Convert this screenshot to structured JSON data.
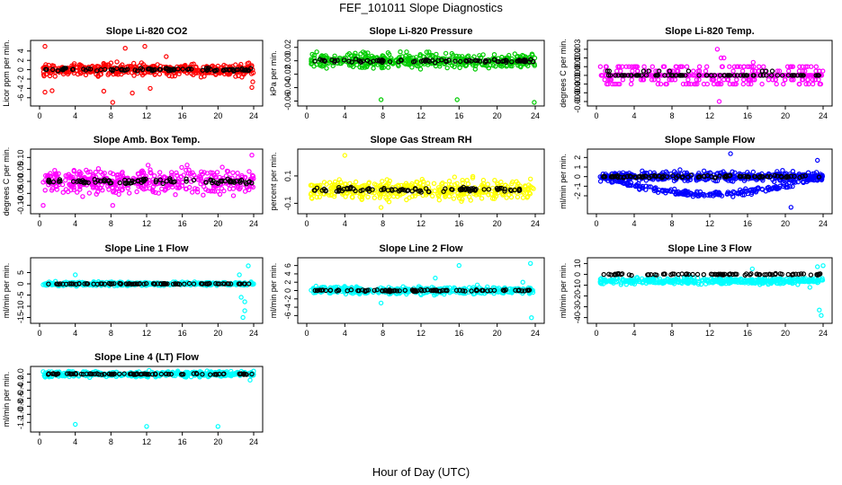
{
  "title": "FEF_101011  Slope Diagnostics",
  "xlabel": "Hour of Day (UTC)",
  "chart_data": [
    {
      "type": "scatter",
      "title": "Slope Li-820 CO2",
      "ylabel": "Licor ppm per min.",
      "color": "#ff0000",
      "xlim": [
        0,
        24
      ],
      "xticks": [
        0,
        4,
        8,
        12,
        16,
        20,
        24
      ],
      "ylim": [
        -7,
        5.5
      ],
      "yticks": [
        -6,
        -4,
        -2,
        0,
        2,
        4
      ],
      "spread": 1.3,
      "outliers": [
        [
          0.6,
          5
        ],
        [
          0.6,
          -4.8
        ],
        [
          1.4,
          -4.5
        ],
        [
          7.2,
          -4.6
        ],
        [
          8.2,
          -7
        ],
        [
          9.6,
          4.6
        ],
        [
          10.4,
          -5
        ],
        [
          11.8,
          5
        ],
        [
          12.4,
          -4
        ],
        [
          23.8,
          -3.8
        ],
        [
          23.9,
          -2.6
        ],
        [
          14.2,
          2.8
        ]
      ],
      "black_offset": 0
    },
    {
      "type": "scatter",
      "title": "Slope Li-820 Pressure",
      "ylabel": "kPa per min.",
      "color": "#00cc00",
      "xlim": [
        0,
        24
      ],
      "xticks": [
        0,
        4,
        8,
        12,
        16,
        20,
        24
      ],
      "ylim": [
        -0.062,
        0.025
      ],
      "yticks": [
        -0.06,
        -0.04,
        -0.02,
        0.0,
        0.02
      ],
      "spread": 0.011,
      "outliers": [
        [
          7.8,
          -0.058
        ],
        [
          15.8,
          -0.058
        ],
        [
          23.9,
          -0.062
        ],
        [
          12.6,
          0.013
        ]
      ],
      "black_offset": 0
    },
    {
      "type": "scatter",
      "title": "Slope Li-820 Temp.",
      "ylabel": "degrees C per min.",
      "color": "#ff00ff",
      "xlim": [
        0,
        24
      ],
      "xticks": [
        0,
        4,
        8,
        12,
        16,
        20,
        24
      ],
      "ylim": [
        -0.0031,
        0.0036
      ],
      "yticks": [
        -0.003,
        -0.002,
        -0.001,
        0.0,
        0.001,
        0.002,
        0.003
      ],
      "levels": [
        -0.001,
        -0.0005,
        0,
        0.0005,
        0.001
      ],
      "outliers": [
        [
          12.8,
          0.003
        ],
        [
          13.2,
          0.002
        ],
        [
          16.6,
          0.0015
        ],
        [
          13,
          -0.003
        ],
        [
          13.5,
          0.002
        ]
      ],
      "black_offset": 0
    },
    {
      "type": "scatter",
      "title": "Slope Amb. Box Temp.",
      "ylabel": "degrees C per min.",
      "color": "#ff00ff",
      "xlim": [
        0,
        24
      ],
      "xticks": [
        0,
        4,
        8,
        12,
        16,
        20,
        24
      ],
      "ylim": [
        -0.12,
        0.12
      ],
      "yticks": [
        -0.1,
        -0.05,
        0.0,
        0.05,
        0.1
      ],
      "spread": 0.05,
      "outliers": [
        [
          0.4,
          -0.1
        ],
        [
          23.8,
          0.11
        ],
        [
          8.2,
          -0.1
        ]
      ],
      "black_offset": 0
    },
    {
      "type": "scatter",
      "title": "Slope Gas Stream RH",
      "ylabel": "percent per min.",
      "color": "#ffff00",
      "xlim": [
        0,
        24
      ],
      "xticks": [
        0,
        4,
        8,
        12,
        16,
        20,
        24
      ],
      "ylim": [
        -0.15,
        0.27
      ],
      "yticks": [
        -0.1,
        0.1
      ],
      "spread": 0.07,
      "outliers": [
        [
          4,
          0.25
        ],
        [
          7.8,
          -0.13
        ]
      ],
      "black_offset": 0
    },
    {
      "type": "scatter",
      "title": "Slope Sample Flow",
      "ylabel": "ml/min per min.",
      "color": "#0000ff",
      "xlim": [
        0,
        24
      ],
      "xticks": [
        0,
        4,
        8,
        12,
        16,
        20,
        24
      ],
      "ylim": [
        -3.5,
        2.5
      ],
      "yticks": [
        -2,
        -1,
        0,
        1,
        2
      ],
      "spread": 0.5,
      "secondband": -2.0,
      "outliers": [
        [
          14.2,
          2.4
        ],
        [
          20.6,
          -3.2
        ],
        [
          23.4,
          1.7
        ]
      ],
      "black_offset": 0
    },
    {
      "type": "scatter",
      "title": "Slope Line 1 Flow",
      "ylabel": "ml/min per min.",
      "color": "#00ffff",
      "xlim": [
        0,
        24
      ],
      "xticks": [
        0,
        4,
        8,
        12,
        16,
        20,
        24
      ],
      "ylim": [
        -16,
        10
      ],
      "yticks": [
        -15,
        -10,
        -5,
        0,
        5
      ],
      "spread": 0.8,
      "outliers": [
        [
          22.8,
          -15
        ],
        [
          23,
          -12
        ],
        [
          22.6,
          -6
        ],
        [
          23.4,
          8
        ],
        [
          22.4,
          4
        ],
        [
          23,
          -8
        ],
        [
          4,
          4
        ]
      ],
      "black_offset": 0
    },
    {
      "type": "scatter",
      "title": "Slope Line 2 Flow",
      "ylabel": "ml/min per min.",
      "color": "#00ffff",
      "xlim": [
        0,
        24
      ],
      "xticks": [
        0,
        4,
        8,
        12,
        16,
        20,
        24
      ],
      "ylim": [
        -7,
        7
      ],
      "yticks": [
        -6,
        -4,
        -2,
        0,
        2,
        4,
        6
      ],
      "spread": 0.9,
      "outliers": [
        [
          16,
          6
        ],
        [
          23.5,
          6.5
        ],
        [
          23.6,
          -6.5
        ],
        [
          7.8,
          -3
        ],
        [
          13.5,
          3
        ],
        [
          22.7,
          2
        ]
      ],
      "black_offset": 0
    },
    {
      "type": "scatter",
      "title": "Slope Line 3 Flow",
      "ylabel": "ml/min per min.",
      "color": "#00ffff",
      "xlim": [
        0,
        24
      ],
      "xticks": [
        0,
        4,
        8,
        12,
        16,
        20,
        24
      ],
      "ylim": [
        -42,
        12
      ],
      "yticks": [
        -40,
        -30,
        -20,
        -10,
        0,
        10
      ],
      "spread": 3,
      "offset": -6,
      "outliers": [
        [
          23.8,
          -38
        ],
        [
          23.6,
          -33
        ],
        [
          22.6,
          -12
        ],
        [
          23.4,
          7
        ],
        [
          16.5,
          5
        ],
        [
          24,
          8
        ]
      ],
      "black_offset": 0
    },
    {
      "type": "scatter",
      "title": "Slope Line 4 (LT) Flow",
      "ylabel": "ml/min per min.",
      "color": "#00ffff",
      "xlim": [
        0,
        24
      ],
      "xticks": [
        0,
        4,
        8,
        12,
        16,
        20,
        24
      ],
      "ylim": [
        -1.35,
        0.1
      ],
      "yticks": [
        -1.2,
        -1.0,
        -0.8,
        -0.6,
        -0.4,
        -0.2,
        0.0
      ],
      "spread": 0.07,
      "outliers": [
        [
          4,
          -1.25
        ],
        [
          12,
          -1.3
        ],
        [
          20,
          -1.3
        ],
        [
          23.6,
          -0.15
        ]
      ],
      "black_offset": 0
    }
  ]
}
